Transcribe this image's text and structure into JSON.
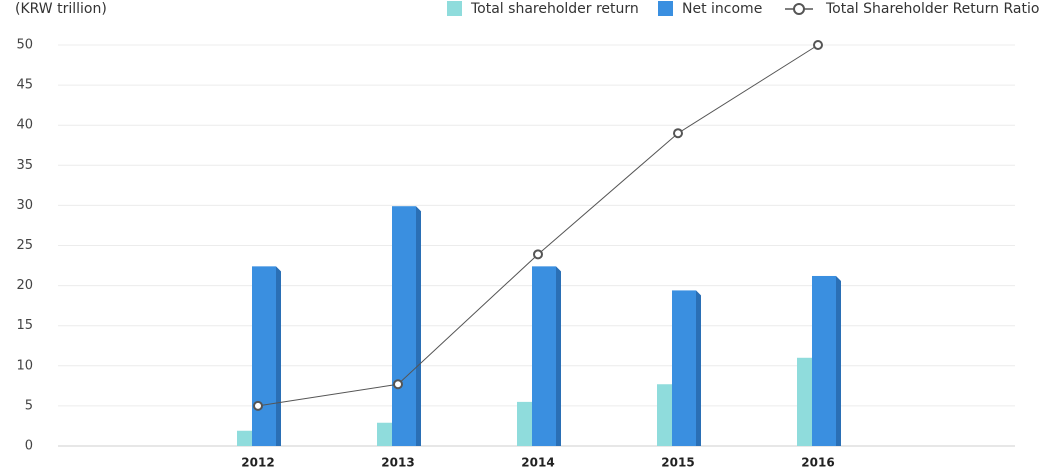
{
  "chart_data": {
    "type": "bar_line",
    "y_axis_label": "(KRW trillion)",
    "categories": [
      "2012",
      "2013",
      "2014",
      "2015",
      "2016"
    ],
    "series": [
      {
        "name": "Total shareholder return",
        "color": "#8fdcdc",
        "kind": "bar",
        "values": [
          1.9,
          2.9,
          5.5,
          7.7,
          11.0
        ]
      },
      {
        "name": "Net income",
        "color": "#3a8fe0",
        "kind": "bar",
        "values": [
          22.4,
          29.9,
          22.4,
          19.4,
          21.2
        ]
      },
      {
        "name": "Total Shareholder Return Ratio",
        "color": "#555555",
        "kind": "line",
        "values": [
          5.0,
          7.7,
          23.9,
          39.0,
          50.0
        ]
      }
    ],
    "ylim": [
      0,
      50
    ],
    "yticks": [
      0,
      5,
      10,
      15,
      20,
      25,
      30,
      35,
      40,
      45,
      50
    ],
    "grid": true
  }
}
